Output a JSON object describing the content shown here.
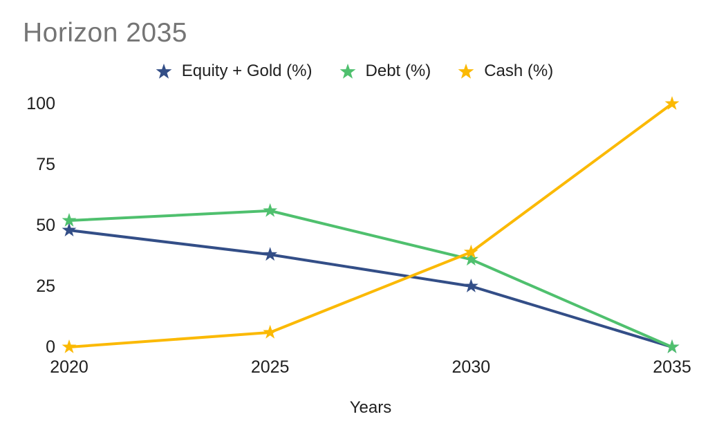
{
  "title": "Horizon 2035",
  "title_color": "#757575",
  "text_color": "#1f1f1f",
  "background_color": "#ffffff",
  "chart_data": {
    "type": "line",
    "title": "Horizon 2035",
    "xlabel": "Years",
    "ylabel": "",
    "x": [
      2020,
      2025,
      2030,
      2035
    ],
    "categories": [
      "2020",
      "2025",
      "2030",
      "2035"
    ],
    "series": [
      {
        "name": "Equity + Gold (%)",
        "color": "#334e87",
        "marker": "star",
        "values": [
          48,
          38,
          25,
          0
        ]
      },
      {
        "name": "Debt (%)",
        "color": "#4fc06e",
        "marker": "star",
        "values": [
          52,
          56,
          36,
          0
        ]
      },
      {
        "name": "Cash (%)",
        "color": "#fbb903",
        "marker": "star",
        "values": [
          0,
          6,
          39,
          100
        ]
      }
    ],
    "y_ticks": [
      0,
      25,
      50,
      75,
      100
    ],
    "ylim": [
      0,
      100
    ],
    "xlim": [
      2020,
      2035
    ],
    "grid": false,
    "axis_lines": false,
    "legend_position": "top"
  }
}
